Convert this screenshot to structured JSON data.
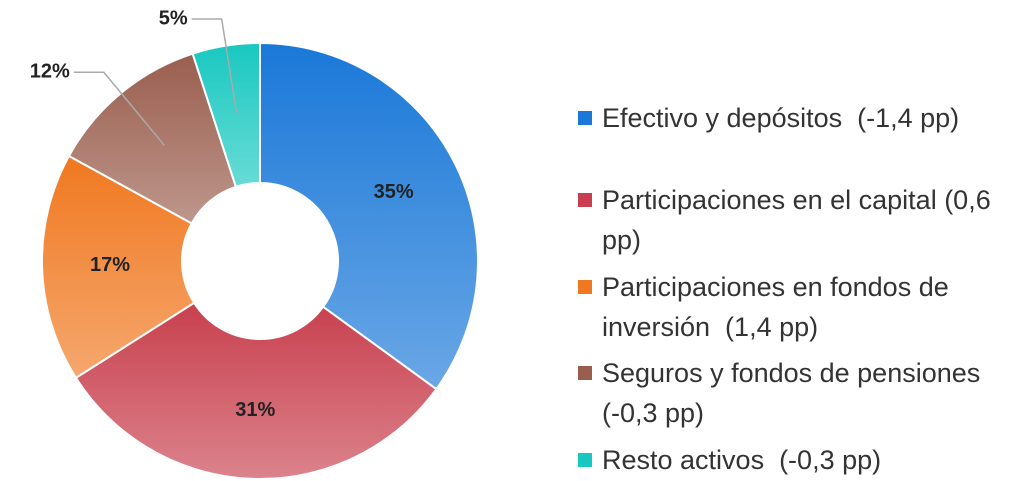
{
  "chart_data": {
    "type": "donut",
    "categories": [
      "Efectivo y depósitos  (-1,4 pp)",
      "Participaciones en el capital (0,6 pp)",
      "Participaciones en fondos de inversión  (1,4 pp)",
      "Seguros y fondos de pensiones      (-0,3 pp)",
      "Resto activos  (-0,3 pp)"
    ],
    "values": [
      35,
      31,
      17,
      12,
      5
    ],
    "value_labels": [
      "35%",
      "31%",
      "17%",
      "12%",
      "5%"
    ],
    "colors": [
      "#1a78d8",
      "#c8404e",
      "#f07820",
      "#9a5e4e",
      "#18c8c0"
    ],
    "legend": "right"
  }
}
